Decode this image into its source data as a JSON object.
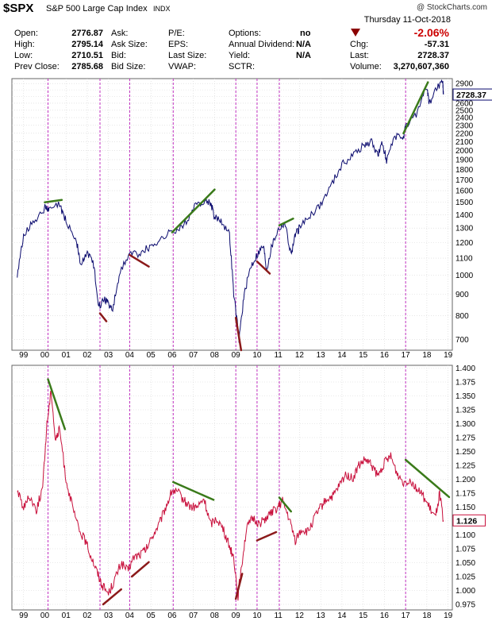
{
  "header": {
    "symbol": "$SPX",
    "name": "S&P 500 Large Cap Index",
    "exchange": "INDX",
    "watermark": "@ StockCharts.com",
    "date": "Thursday 11-Oct-2018",
    "fields": [
      {
        "label": "Open:",
        "value": "2776.87"
      },
      {
        "label": "High:",
        "value": "2795.14"
      },
      {
        "label": "Low:",
        "value": "2710.51"
      },
      {
        "label": "Prev Close:",
        "value": "2785.68"
      },
      {
        "label": "Ask:",
        "value": ""
      },
      {
        "label": "Ask Size:",
        "value": ""
      },
      {
        "label": "Bid:",
        "value": ""
      },
      {
        "label": "Bid Size:",
        "value": ""
      },
      {
        "label": "P/E:",
        "value": ""
      },
      {
        "label": "EPS:",
        "value": ""
      },
      {
        "label": "Last Size:",
        "value": ""
      },
      {
        "label": "VWAP:",
        "value": ""
      },
      {
        "label": "Options:",
        "value": "no"
      },
      {
        "label": "Annual Dividend:",
        "value": "N/A"
      },
      {
        "label": "Yield:",
        "value": "N/A"
      },
      {
        "label": "SCTR:",
        "value": ""
      }
    ],
    "change_pct": "-2.06%",
    "chg_label": "Chg:",
    "chg_value": "-57.31",
    "last_label": "Last:",
    "last_value": "2728.37",
    "volume_label": "Volume:",
    "volume_value": "3,270,607,360",
    "down_color": "#cc0000"
  },
  "chart_data": [
    {
      "type": "line",
      "scale": "log",
      "series": [
        {
          "color": "#0a0a6e",
          "last_label": "2728.37"
        }
      ],
      "x": [
        1998.7,
        1999.0,
        1999.5,
        2000.0,
        2000.2,
        2000.7,
        2001.0,
        2001.5,
        2001.7,
        2002.0,
        2002.3,
        2002.55,
        2002.8,
        2003.0,
        2003.2,
        2003.5,
        2004.0,
        2004.5,
        2005.0,
        2005.5,
        2006.0,
        2006.5,
        2007.0,
        2007.5,
        2007.8,
        2008.0,
        2008.3,
        2008.7,
        2008.9,
        2009.15,
        2009.4,
        2009.7,
        2010.0,
        2010.3,
        2010.45,
        2010.7,
        2011.0,
        2011.3,
        2011.6,
        2011.8,
        2012.0,
        2012.5,
        2013.0,
        2013.5,
        2014.0,
        2014.5,
        2015.0,
        2015.4,
        2015.7,
        2015.9,
        2016.1,
        2016.5,
        2016.9,
        2017.0,
        2017.5,
        2018.0,
        2018.1,
        2018.5,
        2018.75,
        2018.78
      ],
      "y": [
        980,
        1250,
        1350,
        1450,
        1430,
        1480,
        1350,
        1200,
        1050,
        1140,
        1060,
        840,
        880,
        860,
        820,
        1000,
        1130,
        1130,
        1180,
        1220,
        1280,
        1300,
        1450,
        1520,
        1500,
        1380,
        1360,
        1250,
        900,
        700,
        900,
        1050,
        1120,
        1180,
        1030,
        1180,
        1290,
        1340,
        1120,
        1250,
        1300,
        1400,
        1480,
        1650,
        1850,
        1950,
        2050,
        2100,
        1950,
        2080,
        1900,
        2150,
        2160,
        2270,
        2450,
        2850,
        2600,
        2850,
        2900,
        2728
      ],
      "ylim": [
        660,
        2980
      ],
      "yticks": [
        700,
        800,
        900,
        1000,
        1100,
        1200,
        1300,
        1400,
        1500,
        1600,
        1700,
        1800,
        1900,
        2000,
        2100,
        2200,
        2300,
        2400,
        2500,
        2600,
        2700,
        2800,
        2900
      ],
      "ytick_labels": [
        "700",
        "800",
        "900",
        "1000",
        "1100",
        "1200",
        "1300",
        "1400",
        "1500",
        "1600",
        "1700",
        "1800",
        "1900",
        "2000",
        "2100",
        "2200",
        "2300",
        "2400",
        "2500",
        "2600",
        "",
        "",
        "2900"
      ],
      "trendlines": [
        {
          "color": "#3a7a1a",
          "x1": 2000.0,
          "y1": 1500,
          "x2": 2000.8,
          "y2": 1520
        },
        {
          "color": "#3a7a1a",
          "x1": 2006.0,
          "y1": 1270,
          "x2": 2008.0,
          "y2": 1610
        },
        {
          "color": "#3a7a1a",
          "x1": 2011.05,
          "y1": 1320,
          "x2": 2011.7,
          "y2": 1370
        },
        {
          "color": "#3a7a1a",
          "x1": 2016.9,
          "y1": 2200,
          "x2": 2018.05,
          "y2": 2920
        },
        {
          "color": "#8b1a1a",
          "x1": 2002.6,
          "y1": 810,
          "x2": 2002.9,
          "y2": 775
        },
        {
          "color": "#8b1a1a",
          "x1": 2004.0,
          "y1": 1120,
          "x2": 2004.9,
          "y2": 1050
        },
        {
          "color": "#8b1a1a",
          "x1": 2009.0,
          "y1": 790,
          "x2": 2009.25,
          "y2": 660
        },
        {
          "color": "#8b1a1a",
          "x1": 2010.0,
          "y1": 1080,
          "x2": 2010.6,
          "y2": 1010
        }
      ]
    },
    {
      "type": "line",
      "series": [
        {
          "color": "#c8103c",
          "last_label": "1.126"
        }
      ],
      "x": [
        1998.7,
        1999.0,
        1999.3,
        1999.6,
        1999.9,
        2000.1,
        2000.3,
        2000.5,
        2000.7,
        2001.0,
        2001.3,
        2001.6,
        2001.9,
        2002.2,
        2002.5,
        2002.7,
        2003.0,
        2003.3,
        2003.6,
        2003.9,
        2004.2,
        2004.5,
        2004.8,
        2005.1,
        2005.4,
        2005.7,
        2006.0,
        2006.3,
        2006.6,
        2006.9,
        2007.2,
        2007.5,
        2007.8,
        2008.1,
        2008.4,
        2008.7,
        2008.9,
        2009.1,
        2009.25,
        2009.5,
        2009.8,
        2010.1,
        2010.4,
        2010.7,
        2011.0,
        2011.2,
        2011.5,
        2011.8,
        2012.1,
        2012.4,
        2012.7,
        2013.0,
        2013.3,
        2013.6,
        2013.9,
        2014.2,
        2014.5,
        2014.8,
        2015.1,
        2015.4,
        2015.7,
        2016.0,
        2016.3,
        2016.6,
        2016.9,
        2017.2,
        2017.5,
        2017.8,
        2018.1,
        2018.4,
        2018.6,
        2018.78
      ],
      "y": [
        1.18,
        1.15,
        1.17,
        1.145,
        1.185,
        1.3,
        1.36,
        1.27,
        1.29,
        1.2,
        1.15,
        1.11,
        1.09,
        1.06,
        1.03,
        1.01,
        0.995,
        1.02,
        1.05,
        1.035,
        1.06,
        1.065,
        1.075,
        1.1,
        1.12,
        1.15,
        1.18,
        1.175,
        1.16,
        1.15,
        1.15,
        1.165,
        1.12,
        1.13,
        1.11,
        1.08,
        1.06,
        0.99,
        1.04,
        1.11,
        1.13,
        1.12,
        1.13,
        1.14,
        1.15,
        1.16,
        1.13,
        1.09,
        1.11,
        1.105,
        1.13,
        1.15,
        1.165,
        1.17,
        1.19,
        1.21,
        1.2,
        1.225,
        1.235,
        1.225,
        1.205,
        1.23,
        1.24,
        1.21,
        1.195,
        1.2,
        1.185,
        1.17,
        1.15,
        1.13,
        1.175,
        1.126
      ],
      "ylim": [
        0.965,
        1.405
      ],
      "yticks": [
        0.975,
        1.0,
        1.025,
        1.05,
        1.075,
        1.1,
        1.125,
        1.15,
        1.175,
        1.2,
        1.225,
        1.25,
        1.275,
        1.3,
        1.325,
        1.35,
        1.375,
        1.4
      ],
      "ytick_labels": [
        "0.975",
        "1.000",
        "1.025",
        "1.050",
        "1.075",
        "1.100",
        "",
        "1.150",
        "1.175",
        "1.200",
        "1.225",
        "1.250",
        "1.275",
        "1.300",
        "1.325",
        "1.350",
        "1.375",
        "1.400"
      ],
      "trendlines": [
        {
          "color": "#3a7a1a",
          "x1": 2000.15,
          "y1": 1.38,
          "x2": 2000.95,
          "y2": 1.29
        },
        {
          "color": "#3a7a1a",
          "x1": 2006.05,
          "y1": 1.195,
          "x2": 2007.95,
          "y2": 1.163
        },
        {
          "color": "#3a7a1a",
          "x1": 2011.05,
          "y1": 1.167,
          "x2": 2011.6,
          "y2": 1.142
        },
        {
          "color": "#3a7a1a",
          "x1": 2017.0,
          "y1": 1.235,
          "x2": 2019.05,
          "y2": 1.168
        },
        {
          "color": "#8b1a1a",
          "x1": 2002.75,
          "y1": 0.975,
          "x2": 2003.6,
          "y2": 1.002
        },
        {
          "color": "#8b1a1a",
          "x1": 2004.1,
          "y1": 1.025,
          "x2": 2004.9,
          "y2": 1.051
        },
        {
          "color": "#8b1a1a",
          "x1": 2009.0,
          "y1": 0.985,
          "x2": 2009.3,
          "y2": 1.03
        },
        {
          "color": "#8b1a1a",
          "x1": 2010.0,
          "y1": 1.09,
          "x2": 2010.9,
          "y2": 1.105
        }
      ]
    }
  ],
  "x_axis": {
    "xlim": [
      1998.45,
      2019.2
    ],
    "ticks": [
      1999.0,
      2000.0,
      2001.0,
      2002.0,
      2003.0,
      2004.0,
      2005.0,
      2006.0,
      2007.0,
      2008.0,
      2009.0,
      2010.0,
      2011.0,
      2012.0,
      2013.0,
      2014.0,
      2015.0,
      2016.0,
      2017.0,
      2018.0,
      2019.0
    ],
    "labels": [
      "99",
      "00",
      "01",
      "02",
      "03",
      "04",
      "05",
      "06",
      "07",
      "08",
      "09",
      "10",
      "11",
      "12",
      "13",
      "14",
      "15",
      "16",
      "17",
      "18",
      "19"
    ]
  },
  "vlines": {
    "color": "#c030c0",
    "x": [
      2000.15,
      2002.6,
      2004.0,
      2006.05,
      2009.0,
      2010.0,
      2011.05,
      2017.0
    ]
  }
}
